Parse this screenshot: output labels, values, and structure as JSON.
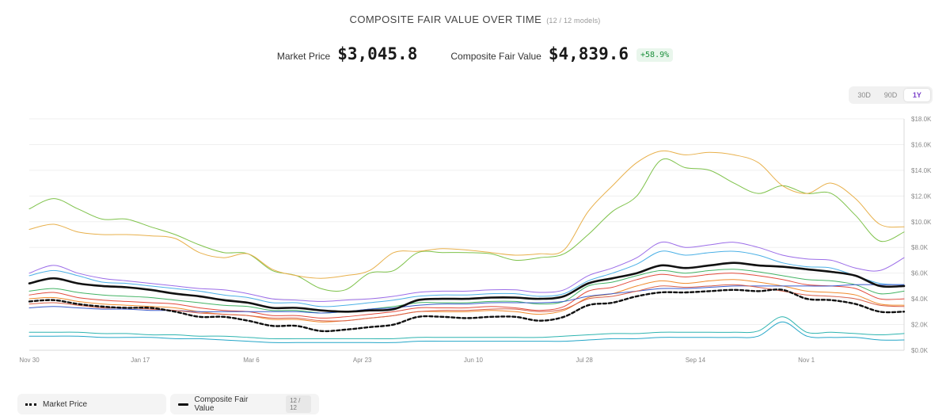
{
  "header": {
    "title": "COMPOSITE FAIR VALUE OVER TIME",
    "subtitle": "(12 / 12 models)"
  },
  "stats": {
    "market_price_label": "Market Price",
    "market_price_value": "$3,045.8",
    "composite_label": "Composite Fair Value",
    "composite_value": "$4,839.6",
    "change_badge": "+58.9%"
  },
  "range": {
    "options": [
      "30D",
      "90D",
      "1Y"
    ],
    "selected": "1Y"
  },
  "legend": {
    "market_price": "Market Price",
    "composite": "Composite Fair Value",
    "count": "12 / 12"
  },
  "colors": {
    "accent": "#7a3fc9",
    "positive": "#1c8f3b",
    "composite": "#111111",
    "market": "#111111"
  },
  "chart_data": {
    "type": "line",
    "x": [
      "Nov 30",
      "Dec 10",
      "Dec 20",
      "Dec 30",
      "Jan 9",
      "Jan 19",
      "Jan 29",
      "Feb 8",
      "Feb 18",
      "Feb 28",
      "Mar 9",
      "Mar 19",
      "Mar 29",
      "Apr 8",
      "Apr 18",
      "Apr 28",
      "May 8",
      "May 18",
      "May 28",
      "Jun 7",
      "Jun 17",
      "Jun 27",
      "Jul 7",
      "Jul 17",
      "Jul 27",
      "Aug 6",
      "Aug 16",
      "Aug 26",
      "Sep 5",
      "Sep 15",
      "Sep 25",
      "Oct 5",
      "Oct 15",
      "Oct 25",
      "Nov 4",
      "Nov 14",
      "Nov 24"
    ],
    "x_ticks": [
      "Nov 30",
      "Jan 17",
      "Mar 6",
      "Apr 23",
      "Jun 10",
      "Jul 28",
      "Sep 14",
      "Nov 1"
    ],
    "y_ticks": [
      "$0.0K",
      "$2.0K",
      "$4.0K",
      "$6.0K",
      "$8.0K",
      "$10.0K",
      "$12.0K",
      "$14.0K",
      "$16.0K",
      "$18.0K"
    ],
    "ylim": [
      0,
      18000
    ],
    "grid": true,
    "series": [
      {
        "name": "Market Price",
        "color": "#111111",
        "dashed": true,
        "width": 2.4,
        "values": [
          3800,
          3900,
          3600,
          3400,
          3300,
          3300,
          3000,
          2600,
          2600,
          2300,
          1900,
          1900,
          1500,
          1600,
          1800,
          2000,
          2600,
          2600,
          2500,
          2600,
          2600,
          2300,
          2600,
          3500,
          3700,
          4200,
          4500,
          4500,
          4600,
          4700,
          4600,
          4700,
          4000,
          3900,
          3600,
          3000,
          3000
        ]
      },
      {
        "name": "Composite Fair Value",
        "color": "#111111",
        "dashed": false,
        "width": 2.6,
        "values": [
          5200,
          5600,
          5200,
          5000,
          4900,
          4700,
          4400,
          4200,
          3900,
          3700,
          3300,
          3300,
          3100,
          3000,
          3100,
          3200,
          3900,
          4000,
          4000,
          4100,
          4100,
          4000,
          4200,
          5200,
          5600,
          6000,
          6600,
          6400,
          6600,
          6800,
          6600,
          6500,
          6300,
          6100,
          5800,
          5000,
          5000
        ]
      },
      {
        "values": [
          11000,
          11800,
          11000,
          10200,
          10200,
          9600,
          9000,
          8200,
          7600,
          7500,
          6200,
          5800,
          4800,
          4700,
          6000,
          6200,
          7600,
          7600,
          7600,
          7500,
          7000,
          7200,
          7500,
          9000,
          10800,
          12000,
          14800,
          14200,
          14000,
          13000,
          12200,
          12800,
          12200,
          12200,
          10500,
          8500,
          9200
        ],
        "color": "#7ec24a"
      },
      {
        "values": [
          9400,
          9800,
          9200,
          9000,
          9000,
          8900,
          8700,
          7600,
          7200,
          7500,
          6300,
          5800,
          5600,
          5800,
          6200,
          7600,
          7700,
          7900,
          7800,
          7600,
          7400,
          7500,
          7800,
          10800,
          12800,
          14600,
          15500,
          15200,
          15400,
          15200,
          14600,
          12800,
          12200,
          13000,
          11800,
          9800,
          9600
        ],
        "color": "#e8b04b"
      },
      {
        "values": [
          6000,
          6600,
          6000,
          5600,
          5400,
          5200,
          5000,
          4800,
          4700,
          4400,
          4000,
          3900,
          3800,
          3900,
          4000,
          4200,
          4500,
          4600,
          4600,
          4700,
          4700,
          4500,
          4700,
          5800,
          6400,
          7200,
          8400,
          8000,
          8200,
          8400,
          8000,
          7400,
          7100,
          7000,
          6400,
          6200,
          7200
        ],
        "color": "#9b6ce8"
      },
      {
        "values": [
          5800,
          6200,
          5800,
          5300,
          5200,
          5000,
          4800,
          4600,
          4300,
          4100,
          3700,
          3700,
          3400,
          3500,
          3700,
          3900,
          4200,
          4300,
          4300,
          4400,
          4400,
          4200,
          4400,
          5400,
          6000,
          6700,
          7700,
          7400,
          7600,
          7700,
          7400,
          6800,
          6500,
          6400,
          5800,
          5200,
          5100
        ],
        "color": "#4bb0e6"
      },
      {
        "values": [
          4300,
          4500,
          4100,
          3900,
          3800,
          3700,
          3600,
          3300,
          3100,
          3000,
          2700,
          2700,
          2500,
          2600,
          2800,
          3000,
          3300,
          3300,
          3300,
          3400,
          3300,
          3100,
          3400,
          4600,
          4900,
          5500,
          5900,
          5700,
          5900,
          6000,
          5800,
          5500,
          5100,
          5000,
          4800,
          4000,
          4000
        ],
        "color": "#e24b3c"
      },
      {
        "values": [
          4600,
          4800,
          4500,
          4300,
          4200,
          4100,
          3900,
          3700,
          3500,
          3400,
          3100,
          3100,
          2900,
          3000,
          3200,
          3400,
          3700,
          3700,
          3700,
          3800,
          3800,
          3600,
          3800,
          5000,
          5300,
          5800,
          6200,
          6000,
          6200,
          6300,
          6100,
          5800,
          5500,
          5400,
          5100,
          4400,
          4600
        ],
        "color": "#43b364"
      },
      {
        "values": [
          4000,
          4100,
          3800,
          3600,
          3500,
          3400,
          3300,
          3000,
          2800,
          2700,
          2400,
          2400,
          2200,
          2300,
          2500,
          2700,
          3000,
          3000,
          3000,
          3100,
          3000,
          2800,
          3100,
          4100,
          4400,
          5000,
          5400,
          5200,
          5400,
          5500,
          5300,
          5000,
          4600,
          4500,
          4300,
          3600,
          3500
        ],
        "color": "#f08a2c"
      },
      {
        "values": [
          3300,
          3400,
          3300,
          3200,
          3200,
          3100,
          3100,
          3000,
          3000,
          3000,
          3000,
          3000,
          2900,
          3000,
          3200,
          3300,
          3500,
          3600,
          3600,
          3700,
          3700,
          3700,
          3800,
          4200,
          4400,
          4600,
          4800,
          4800,
          4900,
          5000,
          5000,
          5000,
          5000,
          5000,
          5100,
          5100,
          5100
        ],
        "color": "#3b5bcc"
      },
      {
        "values": [
          1400,
          1400,
          1400,
          1300,
          1300,
          1200,
          1200,
          1100,
          1100,
          1000,
          900,
          900,
          900,
          900,
          900,
          900,
          1000,
          1000,
          1000,
          1000,
          1000,
          1000,
          1100,
          1200,
          1300,
          1300,
          1400,
          1400,
          1400,
          1400,
          1500,
          2600,
          1400,
          1400,
          1300,
          1200,
          1300
        ],
        "color": "#2eb4b0"
      },
      {
        "values": [
          1100,
          1100,
          1100,
          1000,
          1000,
          1000,
          900,
          900,
          800,
          700,
          600,
          600,
          600,
          600,
          600,
          600,
          700,
          700,
          700,
          700,
          700,
          700,
          700,
          800,
          900,
          900,
          1000,
          1000,
          1000,
          1000,
          1100,
          2200,
          1100,
          1000,
          1000,
          800,
          800
        ],
        "color": "#24a6c8"
      },
      {
        "values": [
          3600,
          3700,
          3500,
          3300,
          3300,
          3200,
          3100,
          2900,
          2800,
          2700,
          2500,
          2500,
          2300,
          2300,
          2500,
          2700,
          3000,
          3100,
          3100,
          3200,
          3200,
          3000,
          3200,
          4000,
          4200,
          4600,
          5000,
          4900,
          5000,
          5100,
          4900,
          4600,
          4300,
          4200,
          4000,
          3500,
          3400
        ],
        "color": "#d9614a"
      }
    ]
  }
}
